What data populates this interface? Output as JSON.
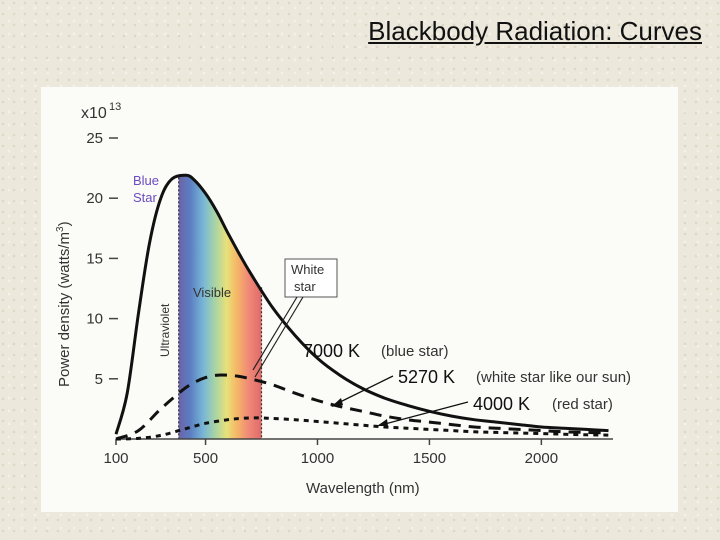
{
  "slide": {
    "title": "Blackbody Radiation: Curves"
  },
  "colors": {
    "blue_star_label": "#6a4bbf",
    "spectrum": [
      "#6d63a8",
      "#5b7ec2",
      "#79b7d6",
      "#a8d4a4",
      "#e8e07a",
      "#f5b865",
      "#f08a78",
      "#e06a6a"
    ]
  },
  "chart_data": {
    "type": "line",
    "title": "",
    "xlabel": "Wavelength (nm)",
    "ylabel": "Power density (watts/m",
    "ylabel_sup": "3",
    "ylabel_close": ")",
    "y_multiplier_base": "x10",
    "y_multiplier_exp": "13",
    "xlim": [
      100,
      2320
    ],
    "ylim": [
      0,
      25
    ],
    "xticks": [
      100,
      500,
      1000,
      1500,
      2000
    ],
    "yticks": [
      5,
      10,
      15,
      20,
      25
    ],
    "bands": {
      "ultraviolet_label": "Ultraviolet",
      "visible_label": "Visible",
      "visible_range_nm": [
        380,
        750
      ]
    },
    "annotations": {
      "blue_star_line1": "Blue",
      "blue_star_line2": "Star",
      "white_star_line1": "White",
      "white_star_line2": "star"
    },
    "series": [
      {
        "name": "7000 K",
        "label_temp": "7000 K",
        "label_desc": "(blue star)",
        "style": "solid",
        "x": [
          100,
          150,
          200,
          250,
          300,
          350,
          414,
          450,
          500,
          550,
          600,
          650,
          700,
          800,
          900,
          1000,
          1100,
          1200,
          1300,
          1400,
          1500,
          1600,
          1700,
          1800,
          1900,
          2000,
          2100,
          2200,
          2300
        ],
        "y": [
          0.4,
          3.8,
          10.4,
          16.3,
          20.0,
          21.6,
          21.9,
          21.5,
          20.4,
          18.9,
          17.1,
          15.4,
          13.8,
          10.9,
          8.6,
          6.7,
          5.3,
          4.2,
          3.4,
          2.8,
          2.3,
          1.9,
          1.6,
          1.4,
          1.2,
          1.0,
          0.9,
          0.8,
          0.7
        ]
      },
      {
        "name": "5270 K",
        "label_temp": "5270 K",
        "label_desc": "(white star like our sun)",
        "style": "dashed",
        "x": [
          100,
          200,
          300,
          400,
          450,
          500,
          550,
          600,
          650,
          700,
          800,
          900,
          1000,
          1100,
          1200,
          1300,
          1400,
          1500,
          1600,
          1700,
          1800,
          1900,
          2000,
          2100,
          2200,
          2300
        ],
        "y": [
          0.0,
          0.7,
          2.5,
          4.1,
          4.7,
          5.1,
          5.3,
          5.3,
          5.2,
          5.0,
          4.5,
          3.8,
          3.2,
          2.7,
          2.3,
          1.9,
          1.6,
          1.4,
          1.2,
          1.0,
          0.9,
          0.8,
          0.7,
          0.6,
          0.55,
          0.5
        ]
      },
      {
        "name": "4000 K",
        "label_temp": "4000 K",
        "label_desc": "(red star)",
        "style": "dotted",
        "x": [
          100,
          200,
          300,
          400,
          500,
          600,
          650,
          700,
          750,
          800,
          900,
          1000,
          1100,
          1200,
          1300,
          1400,
          1500,
          1600,
          1700,
          1800,
          1900,
          2000,
          2100,
          2200,
          2300
        ],
        "y": [
          0.0,
          0.05,
          0.3,
          0.8,
          1.3,
          1.6,
          1.7,
          1.75,
          1.75,
          1.7,
          1.6,
          1.45,
          1.3,
          1.15,
          1.0,
          0.9,
          0.8,
          0.7,
          0.6,
          0.55,
          0.5,
          0.45,
          0.4,
          0.35,
          0.32
        ]
      }
    ]
  }
}
